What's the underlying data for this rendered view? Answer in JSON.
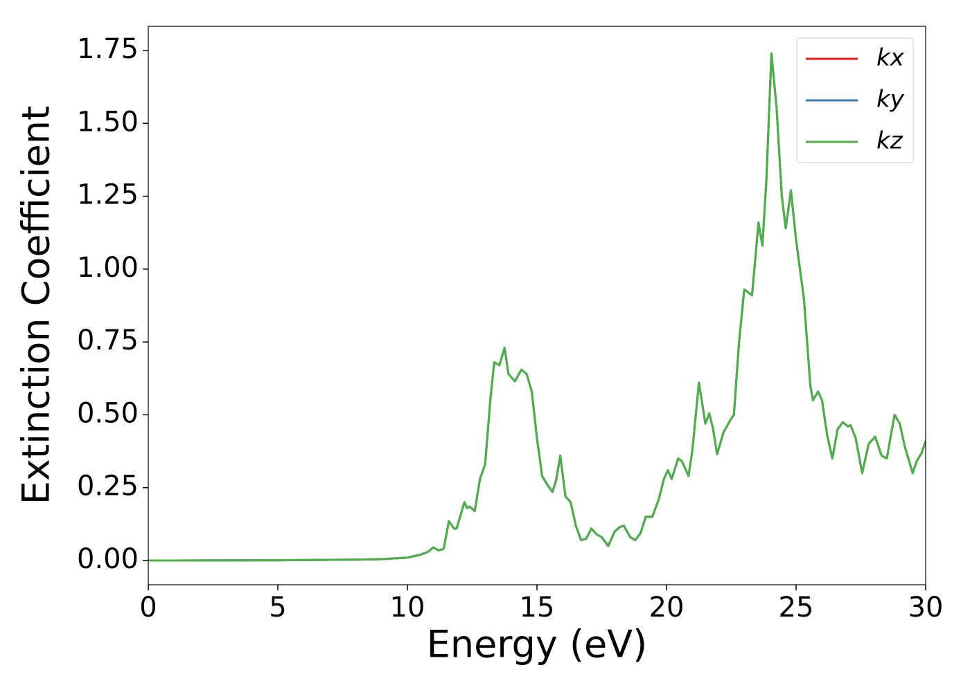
{
  "chart_data": {
    "type": "line",
    "xlabel": "Energy (eV)",
    "ylabel": "Extinction Coefficient",
    "x": [
      0,
      5,
      8,
      9,
      10,
      10.5,
      10.8,
      11.0,
      11.2,
      11.4,
      11.6,
      11.8,
      11.9,
      12.2,
      12.3,
      12.4,
      12.6,
      12.8,
      13.0,
      13.2,
      13.35,
      13.55,
      13.75,
      13.9,
      14.15,
      14.4,
      14.6,
      14.8,
      15.0,
      15.2,
      15.4,
      15.6,
      15.75,
      15.9,
      16.1,
      16.3,
      16.5,
      16.7,
      16.9,
      17.1,
      17.3,
      17.5,
      17.75,
      18.0,
      18.2,
      18.35,
      18.6,
      18.8,
      19.0,
      19.2,
      19.45,
      19.7,
      19.9,
      20.05,
      20.2,
      20.45,
      20.6,
      20.85,
      21.0,
      21.25,
      21.5,
      21.65,
      21.8,
      21.95,
      22.2,
      22.45,
      22.6,
      22.8,
      23.0,
      23.3,
      23.55,
      23.7,
      23.85,
      24.05,
      24.25,
      24.45,
      24.6,
      24.8,
      25.0,
      25.3,
      25.55,
      25.65,
      25.85,
      26.0,
      26.2,
      26.4,
      26.6,
      26.8,
      27.0,
      27.1,
      27.3,
      27.55,
      27.8,
      28.05,
      28.3,
      28.5,
      28.8,
      29.0,
      29.2,
      29.5,
      29.65,
      29.85,
      30.0
    ],
    "series": [
      {
        "name": "kx",
        "color": "#e41a1c",
        "values": [
          0,
          0.001,
          0.003,
          0.005,
          0.01,
          0.02,
          0.03,
          0.045,
          0.035,
          0.04,
          0.135,
          0.11,
          0.11,
          0.2,
          0.18,
          0.185,
          0.17,
          0.28,
          0.33,
          0.55,
          0.68,
          0.67,
          0.73,
          0.64,
          0.615,
          0.655,
          0.64,
          0.58,
          0.42,
          0.29,
          0.26,
          0.235,
          0.28,
          0.36,
          0.22,
          0.2,
          0.12,
          0.07,
          0.075,
          0.11,
          0.09,
          0.08,
          0.05,
          0.1,
          0.115,
          0.12,
          0.08,
          0.07,
          0.095,
          0.15,
          0.15,
          0.21,
          0.28,
          0.31,
          0.28,
          0.35,
          0.34,
          0.29,
          0.38,
          0.61,
          0.47,
          0.505,
          0.45,
          0.365,
          0.44,
          0.48,
          0.5,
          0.75,
          0.93,
          0.91,
          1.16,
          1.08,
          1.3,
          1.74,
          1.55,
          1.25,
          1.14,
          1.27,
          1.1,
          0.9,
          0.6,
          0.55,
          0.58,
          0.55,
          0.43,
          0.35,
          0.45,
          0.475,
          0.46,
          0.465,
          0.42,
          0.3,
          0.4,
          0.425,
          0.36,
          0.35,
          0.5,
          0.47,
          0.39,
          0.3,
          0.34,
          0.37,
          0.41
        ]
      },
      {
        "name": "ky",
        "color": "#377eb8",
        "values": [
          0,
          0.001,
          0.003,
          0.005,
          0.01,
          0.02,
          0.03,
          0.045,
          0.035,
          0.04,
          0.135,
          0.11,
          0.11,
          0.2,
          0.18,
          0.185,
          0.17,
          0.28,
          0.33,
          0.55,
          0.68,
          0.67,
          0.73,
          0.64,
          0.615,
          0.655,
          0.64,
          0.58,
          0.42,
          0.29,
          0.26,
          0.235,
          0.28,
          0.36,
          0.22,
          0.2,
          0.12,
          0.07,
          0.075,
          0.11,
          0.09,
          0.08,
          0.05,
          0.1,
          0.115,
          0.12,
          0.08,
          0.07,
          0.095,
          0.15,
          0.15,
          0.21,
          0.28,
          0.31,
          0.28,
          0.35,
          0.34,
          0.29,
          0.38,
          0.61,
          0.47,
          0.505,
          0.45,
          0.365,
          0.44,
          0.48,
          0.5,
          0.75,
          0.93,
          0.91,
          1.16,
          1.08,
          1.3,
          1.74,
          1.55,
          1.25,
          1.14,
          1.27,
          1.1,
          0.9,
          0.6,
          0.55,
          0.58,
          0.55,
          0.43,
          0.35,
          0.45,
          0.475,
          0.46,
          0.465,
          0.42,
          0.3,
          0.4,
          0.425,
          0.36,
          0.35,
          0.5,
          0.47,
          0.39,
          0.3,
          0.34,
          0.37,
          0.41
        ]
      },
      {
        "name": "kz",
        "color": "#4daf4a",
        "values": [
          0,
          0.001,
          0.003,
          0.005,
          0.01,
          0.02,
          0.03,
          0.045,
          0.035,
          0.04,
          0.135,
          0.11,
          0.11,
          0.2,
          0.18,
          0.185,
          0.17,
          0.28,
          0.33,
          0.55,
          0.68,
          0.67,
          0.73,
          0.64,
          0.615,
          0.655,
          0.64,
          0.58,
          0.42,
          0.29,
          0.26,
          0.235,
          0.28,
          0.36,
          0.22,
          0.2,
          0.12,
          0.07,
          0.075,
          0.11,
          0.09,
          0.08,
          0.05,
          0.1,
          0.115,
          0.12,
          0.08,
          0.07,
          0.095,
          0.15,
          0.15,
          0.21,
          0.28,
          0.31,
          0.28,
          0.35,
          0.34,
          0.29,
          0.38,
          0.61,
          0.47,
          0.505,
          0.45,
          0.365,
          0.44,
          0.48,
          0.5,
          0.75,
          0.93,
          0.91,
          1.16,
          1.08,
          1.3,
          1.74,
          1.55,
          1.25,
          1.14,
          1.27,
          1.1,
          0.9,
          0.6,
          0.55,
          0.58,
          0.55,
          0.43,
          0.35,
          0.45,
          0.475,
          0.46,
          0.465,
          0.42,
          0.3,
          0.4,
          0.425,
          0.36,
          0.35,
          0.5,
          0.47,
          0.39,
          0.3,
          0.34,
          0.37,
          0.41
        ]
      }
    ],
    "xlim": [
      0,
      30
    ],
    "xticks": [
      0,
      5,
      10,
      15,
      20,
      25,
      30
    ],
    "ylim": [
      -0.083,
      1.833
    ],
    "yticks": [
      {
        "value": 0,
        "label": "0.00"
      },
      {
        "value": 0.25,
        "label": "0.25"
      },
      {
        "value": 0.5,
        "label": "0.50"
      },
      {
        "value": 0.75,
        "label": "0.75"
      },
      {
        "value": 1,
        "label": "1.00"
      },
      {
        "value": 1.25,
        "label": "1.25"
      },
      {
        "value": 1.5,
        "label": "1.50"
      },
      {
        "value": 1.75,
        "label": "1.75"
      }
    ],
    "legend": "upper right",
    "grid": false
  }
}
